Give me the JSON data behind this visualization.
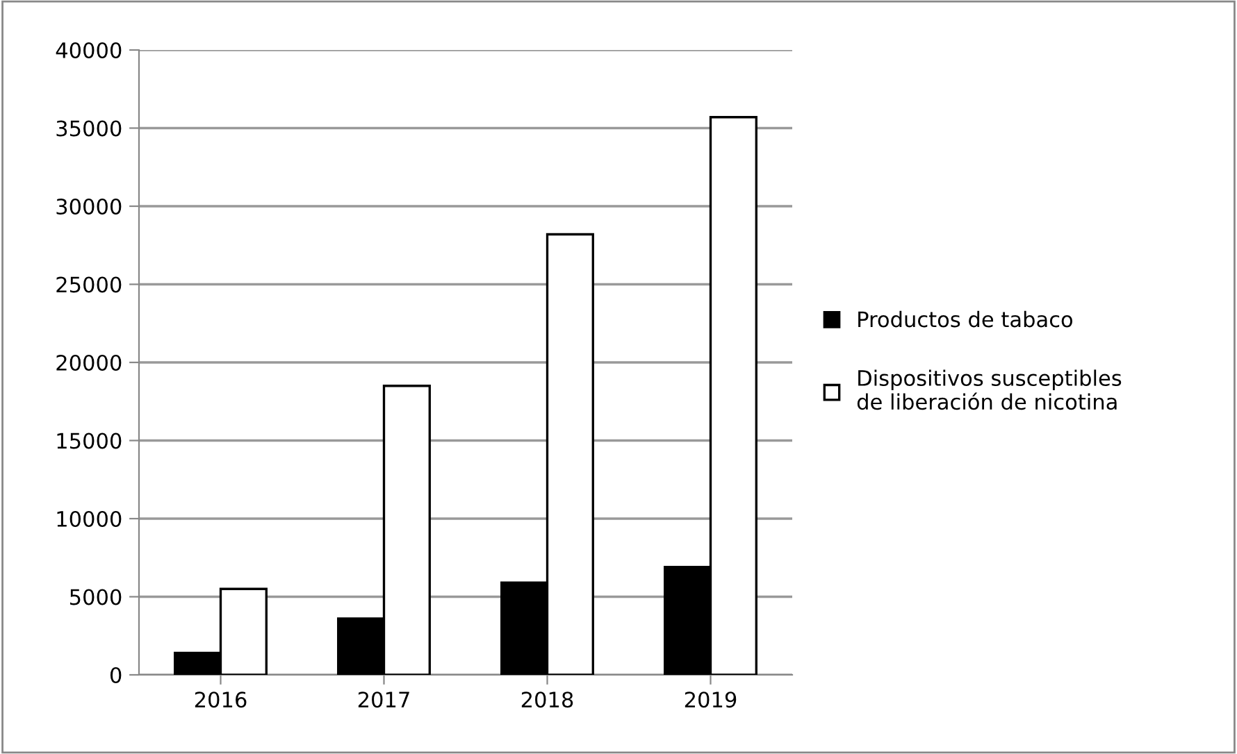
{
  "chart_data": {
    "type": "bar",
    "categories": [
      "2016",
      "2017",
      "2018",
      "2019"
    ],
    "series": [
      {
        "name": "Productos de tabaco",
        "color": "#000000",
        "values": [
          1400,
          3600,
          5900,
          6900
        ]
      },
      {
        "name": "Dispositivos susceptibles\nde liberación de nicotina",
        "color": "#ffffff",
        "values": [
          5500,
          18500,
          28200,
          35700
        ]
      }
    ],
    "ylim": [
      0,
      40000
    ],
    "yticks": [
      0,
      5000,
      10000,
      15000,
      20000,
      25000,
      30000,
      35000,
      40000
    ],
    "grid": "y",
    "legend": "right"
  }
}
